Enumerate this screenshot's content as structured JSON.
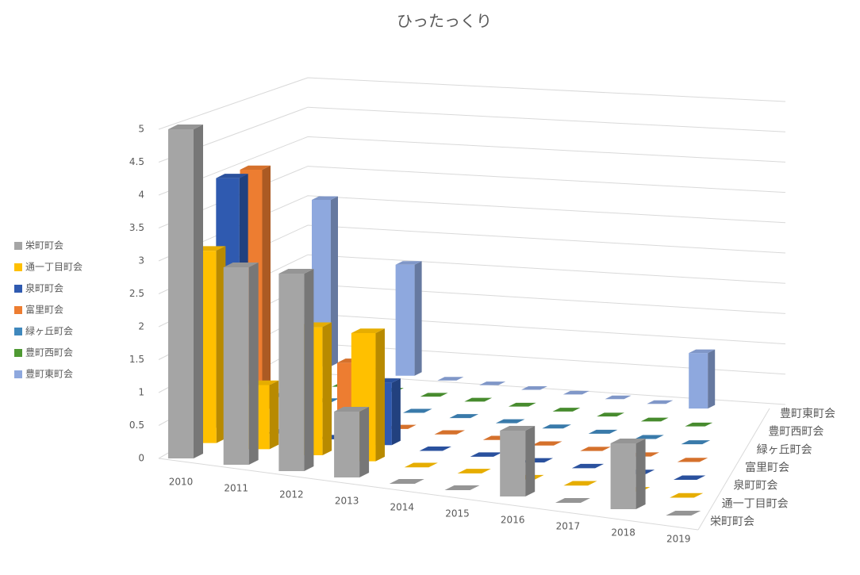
{
  "chart_data": {
    "type": "bar3d",
    "title": "ひったっくり",
    "categories": [
      "2010",
      "2011",
      "2012",
      "2013",
      "2014",
      "2015",
      "2016",
      "2017",
      "2018",
      "2019"
    ],
    "series": [
      {
        "name": "栄町町会",
        "color": "#a5a5a5",
        "values": [
          5,
          3,
          3,
          1,
          0,
          0,
          1,
          0,
          1,
          0
        ]
      },
      {
        "name": "通一丁目町会",
        "color": "#ffc000",
        "values": [
          3,
          1,
          2,
          2,
          0,
          0,
          0,
          0,
          0,
          0
        ]
      },
      {
        "name": "泉町町会",
        "color": "#2f5ab0",
        "values": [
          4,
          0,
          0,
          1,
          0,
          0,
          0,
          0,
          0,
          0
        ]
      },
      {
        "name": "富里町会",
        "color": "#ed7d31",
        "values": [
          4,
          0,
          1,
          0,
          0,
          0,
          0,
          0,
          0,
          0
        ]
      },
      {
        "name": "緑ヶ丘町会",
        "color": "#3f88bd",
        "values": [
          0,
          0,
          0,
          0,
          0,
          0,
          0,
          0,
          0,
          0
        ]
      },
      {
        "name": "豊町西町会",
        "color": "#4f9a33",
        "values": [
          0,
          0,
          0,
          0,
          0,
          0,
          0,
          0,
          0,
          0
        ]
      },
      {
        "name": "豊町東町会",
        "color": "#8ea8de",
        "values": [
          3,
          0,
          2,
          0,
          0,
          0,
          0,
          0,
          0,
          1
        ]
      }
    ],
    "ylim": [
      0,
      5
    ],
    "yticks": [
      0,
      0.5,
      1,
      1.5,
      2,
      2.5,
      3,
      3.5,
      4,
      4.5,
      5
    ],
    "grid": true,
    "legend": "left"
  }
}
